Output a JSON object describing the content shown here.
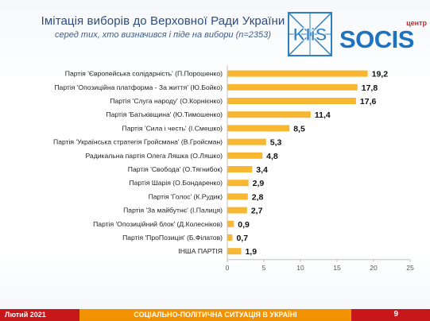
{
  "header": {
    "title": "Імітація виборів до Верховної Ради України",
    "subtitle": "серед тих, хто визначився і піде на вибори (n=2353)"
  },
  "logos": {
    "kiis_text": "KIiS",
    "socis_text": "SOCIS",
    "socis_tag": "центр"
  },
  "footer": {
    "date": "Лютий 2021",
    "center": "СОЦІАЛЬНО-ПОЛІТИЧНА СИТУАЦІЯ В УКРАЇНІ",
    "page": "9"
  },
  "colors": {
    "bar": "#f7b731",
    "title": "#2c4c7c",
    "footer_red": "#c8171a",
    "footer_orange": "#f39200",
    "kiis_blue": "#2f80c1",
    "socis_blue": "#1e73be"
  },
  "chart_data": {
    "type": "bar",
    "orientation": "horizontal",
    "categories": [
      "Партія 'Європейська солідарність' (П.Порошенко)",
      "Партія 'Опозиційна платформа - За життя' (Ю.Бойко)",
      "Партія 'Слуга народу' (О.Корнієнко)",
      "Партія 'Батьківщина' (Ю.Тимошенко)",
      "Партія 'Сила і честь' (І.Смешко)",
      "Партія 'Українська стратегія Гройсмана' (В.Гройсман)",
      "Радикальна партія Олега Ляшка (О.Ляшко)",
      "Партія 'Свобода' (О.Тягнибок)",
      "Партія Шарія (О.Бондаренко)",
      "Партія 'Голос' (К.Рудик)",
      "Партія 'За майбутнє' (І.Палиця)",
      "Партія 'Опозиційний блок' (Д.Колесніков)",
      "Партія 'ПроПозиція' (Б.Філатов)",
      "ІНША ПАРТІЯ"
    ],
    "values": [
      19.2,
      17.8,
      17.6,
      11.4,
      8.5,
      5.3,
      4.8,
      3.4,
      2.9,
      2.8,
      2.7,
      0.9,
      0.7,
      1.9
    ],
    "value_labels": [
      "19,2",
      "17,8",
      "17,6",
      "11,4",
      "8,5",
      "5,3",
      "4,8",
      "3,4",
      "2,9",
      "2,8",
      "2,7",
      "0,9",
      "0,7",
      "1,9"
    ],
    "xlim": [
      0,
      25
    ],
    "xticks": [
      0,
      5,
      10,
      15,
      20,
      25
    ],
    "grid": false,
    "legend": "none"
  }
}
